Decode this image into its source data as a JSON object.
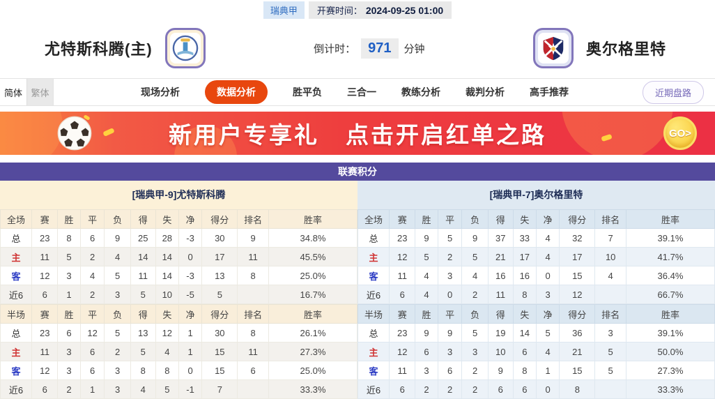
{
  "topbar": {
    "league": "瑞典甲",
    "kickoff_label": "开赛时间：",
    "kickoff_time": "2024-09-25 01:00"
  },
  "match": {
    "home_name": "尤特斯科腾(主)",
    "away_name": "奥尔格里特",
    "countdown_label": "倒计时：",
    "countdown_value": "971",
    "countdown_unit": "分钟"
  },
  "nav": {
    "lang": [
      {
        "label": "简体",
        "active": true
      },
      {
        "label": "繁体",
        "active": false
      }
    ],
    "tabs": [
      "现场分析",
      "数据分析",
      "胜平负",
      "三合一",
      "教练分析",
      "裁判分析",
      "高手推荐"
    ],
    "active_tab": "数据分析",
    "recent_button": "近期盘路"
  },
  "banner": {
    "headline_left": "新用户专享礼",
    "headline_right": "点击开启红单之路",
    "go_label": "GO>"
  },
  "colors": {
    "accent_orange": "#e8470e",
    "title_purple": "#544a9d",
    "home_cream": "#fcf1d8",
    "away_blue": "#dfe9f2",
    "banner_red": "#ee3a3e",
    "go_yellow": "#f8c832"
  },
  "table": {
    "title": "联赛积分",
    "columns": [
      "赛",
      "胜",
      "平",
      "负",
      "得",
      "失",
      "净",
      "得分",
      "排名",
      "胜率"
    ],
    "home": {
      "header": "[瑞典甲-9]尤特斯科腾",
      "blocks": [
        {
          "scope": "全场",
          "rows": [
            {
              "label": "总",
              "type": "total",
              "values": [
                "23",
                "8",
                "6",
                "9",
                "25",
                "28",
                "-3",
                "30",
                "9",
                "34.8%"
              ]
            },
            {
              "label": "主",
              "type": "home",
              "values": [
                "11",
                "5",
                "2",
                "4",
                "14",
                "14",
                "0",
                "17",
                "11",
                "45.5%"
              ]
            },
            {
              "label": "客",
              "type": "away",
              "values": [
                "12",
                "3",
                "4",
                "5",
                "11",
                "14",
                "-3",
                "13",
                "8",
                "25.0%"
              ]
            },
            {
              "label": "近6",
              "type": "recent",
              "values": [
                "6",
                "1",
                "2",
                "3",
                "5",
                "10",
                "-5",
                "5",
                "",
                "16.7%"
              ]
            }
          ]
        },
        {
          "scope": "半场",
          "rows": [
            {
              "label": "总",
              "type": "total",
              "values": [
                "23",
                "6",
                "12",
                "5",
                "13",
                "12",
                "1",
                "30",
                "8",
                "26.1%"
              ]
            },
            {
              "label": "主",
              "type": "home",
              "values": [
                "11",
                "3",
                "6",
                "2",
                "5",
                "4",
                "1",
                "15",
                "11",
                "27.3%"
              ]
            },
            {
              "label": "客",
              "type": "away",
              "values": [
                "12",
                "3",
                "6",
                "3",
                "8",
                "8",
                "0",
                "15",
                "6",
                "25.0%"
              ]
            },
            {
              "label": "近6",
              "type": "recent",
              "values": [
                "6",
                "2",
                "1",
                "3",
                "4",
                "5",
                "-1",
                "7",
                "",
                "33.3%"
              ]
            }
          ]
        }
      ]
    },
    "away": {
      "header": "[瑞典甲-7]奥尔格里特",
      "blocks": [
        {
          "scope": "全场",
          "rows": [
            {
              "label": "总",
              "type": "total",
              "values": [
                "23",
                "9",
                "5",
                "9",
                "37",
                "33",
                "4",
                "32",
                "7",
                "39.1%"
              ]
            },
            {
              "label": "主",
              "type": "home",
              "values": [
                "12",
                "5",
                "2",
                "5",
                "21",
                "17",
                "4",
                "17",
                "10",
                "41.7%"
              ]
            },
            {
              "label": "客",
              "type": "away",
              "values": [
                "11",
                "4",
                "3",
                "4",
                "16",
                "16",
                "0",
                "15",
                "4",
                "36.4%"
              ]
            },
            {
              "label": "近6",
              "type": "recent",
              "values": [
                "6",
                "4",
                "0",
                "2",
                "11",
                "8",
                "3",
                "12",
                "",
                "66.7%"
              ]
            }
          ]
        },
        {
          "scope": "半场",
          "rows": [
            {
              "label": "总",
              "type": "total",
              "values": [
                "23",
                "9",
                "9",
                "5",
                "19",
                "14",
                "5",
                "36",
                "3",
                "39.1%"
              ]
            },
            {
              "label": "主",
              "type": "home",
              "values": [
                "12",
                "6",
                "3",
                "3",
                "10",
                "6",
                "4",
                "21",
                "5",
                "50.0%"
              ]
            },
            {
              "label": "客",
              "type": "away",
              "values": [
                "11",
                "3",
                "6",
                "2",
                "9",
                "8",
                "1",
                "15",
                "5",
                "27.3%"
              ]
            },
            {
              "label": "近6",
              "type": "recent",
              "values": [
                "6",
                "2",
                "2",
                "2",
                "6",
                "6",
                "0",
                "8",
                "",
                "33.3%"
              ]
            }
          ]
        }
      ]
    }
  }
}
